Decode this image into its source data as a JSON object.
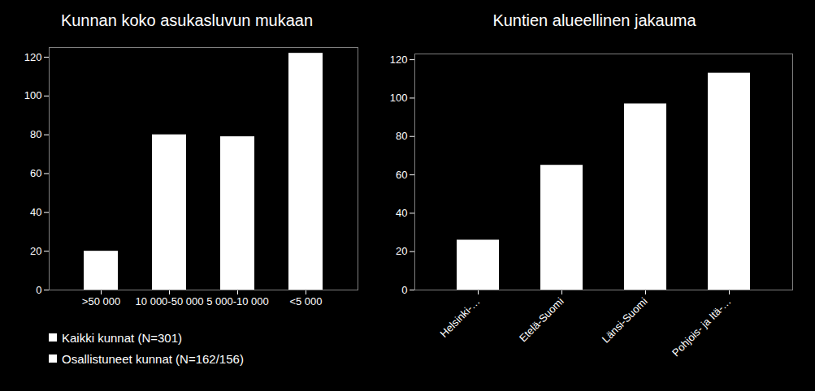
{
  "chart_data": [
    {
      "type": "bar",
      "title": "Kunnan koko asukasluvun mukaan",
      "categories": [
        ">50 000",
        "10 000-50 000",
        "5 000-10 000",
        "<5 000"
      ],
      "series": [
        {
          "name": "Kaikki kunnat (N=301)",
          "color": "#ffffff",
          "values": [
            20,
            80,
            79,
            122
          ]
        },
        {
          "name": "Osallistuneet kunnat (N=162/156)",
          "color": "#ffffff",
          "values": [
            null,
            null,
            null,
            null
          ]
        }
      ],
      "ylim": [
        0,
        125
      ],
      "yticks": [
        0,
        20,
        40,
        60,
        80,
        100,
        120
      ],
      "grid": false,
      "legend": "bottom"
    },
    {
      "type": "bar",
      "title": "Kuntien alueellinen jakauma",
      "categories": [
        "Helsinki-…",
        "Etelä-Suomi",
        "Länsi-Suomi",
        "Pohjois- ja Itä-…"
      ],
      "values": [
        26,
        65,
        97,
        113
      ],
      "color": "#ffffff",
      "ylim": [
        0,
        123
      ],
      "yticks": [
        0,
        20,
        40,
        60,
        80,
        100,
        120
      ],
      "grid": false
    }
  ]
}
